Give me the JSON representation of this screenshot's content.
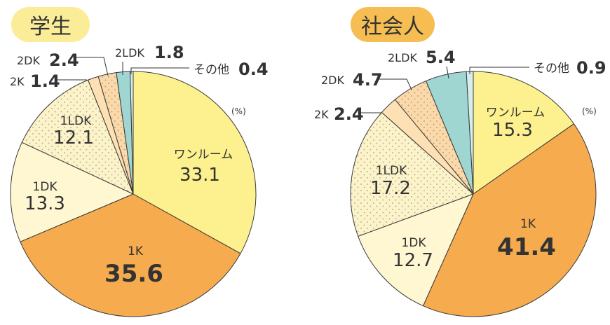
{
  "unit": "(%)",
  "colors": {
    "one_room": "#fdf08e",
    "1K": "#f5ab4e",
    "1DK": "#fef7d2",
    "1LDK": "#fdf3c8",
    "2K": "#fde1b4",
    "2DK": "#fcd9a8",
    "2LDK": "#9fd6d2",
    "other": "#d6efee",
    "outline": "#3a3a3a"
  },
  "chart_data": [
    {
      "type": "pie",
      "title": "学生",
      "categories": [
        "ワンルーム",
        "1K",
        "1DK",
        "1LDK",
        "2K",
        "2DK",
        "2LDK",
        "その他"
      ],
      "values": [
        33.1,
        35.6,
        13.3,
        12.1,
        1.4,
        2.4,
        1.8,
        0.4
      ],
      "unit": "%",
      "start_angle_deg": 0,
      "direction": "clockwise"
    },
    {
      "type": "pie",
      "title": "社会人",
      "categories": [
        "ワンルーム",
        "1K",
        "1DK",
        "1LDK",
        "2K",
        "2DK",
        "2LDK",
        "その他"
      ],
      "values": [
        15.3,
        41.4,
        12.7,
        17.2,
        2.4,
        4.7,
        5.4,
        0.9
      ],
      "unit": "%",
      "start_angle_deg": 0,
      "direction": "clockwise"
    }
  ],
  "left": {
    "title": "学生",
    "labels": {
      "one_room": {
        "name": "ワンルーム",
        "value": "33.1"
      },
      "1K": {
        "name": "1K",
        "value": "35.6"
      },
      "1DK": {
        "name": "1DK",
        "value": "13.3"
      },
      "1LDK": {
        "name": "1LDK",
        "value": "12.1"
      },
      "2K": {
        "name": "2K",
        "value": "1.4"
      },
      "2DK": {
        "name": "2DK",
        "value": "2.4"
      },
      "2LDK": {
        "name": "2LDK",
        "value": "1.8"
      },
      "other": {
        "name": "その他",
        "value": "0.4"
      }
    }
  },
  "right": {
    "title": "社会人",
    "labels": {
      "one_room": {
        "name": "ワンルーム",
        "value": "15.3"
      },
      "1K": {
        "name": "1K",
        "value": "41.4"
      },
      "1DK": {
        "name": "1DK",
        "value": "12.7"
      },
      "1LDK": {
        "name": "1LDK",
        "value": "17.2"
      },
      "2K": {
        "name": "2K",
        "value": "2.4"
      },
      "2DK": {
        "name": "2DK",
        "value": "4.7"
      },
      "2LDK": {
        "name": "2LDK",
        "value": "5.4"
      },
      "other": {
        "name": "その他",
        "value": "0.9"
      }
    }
  }
}
